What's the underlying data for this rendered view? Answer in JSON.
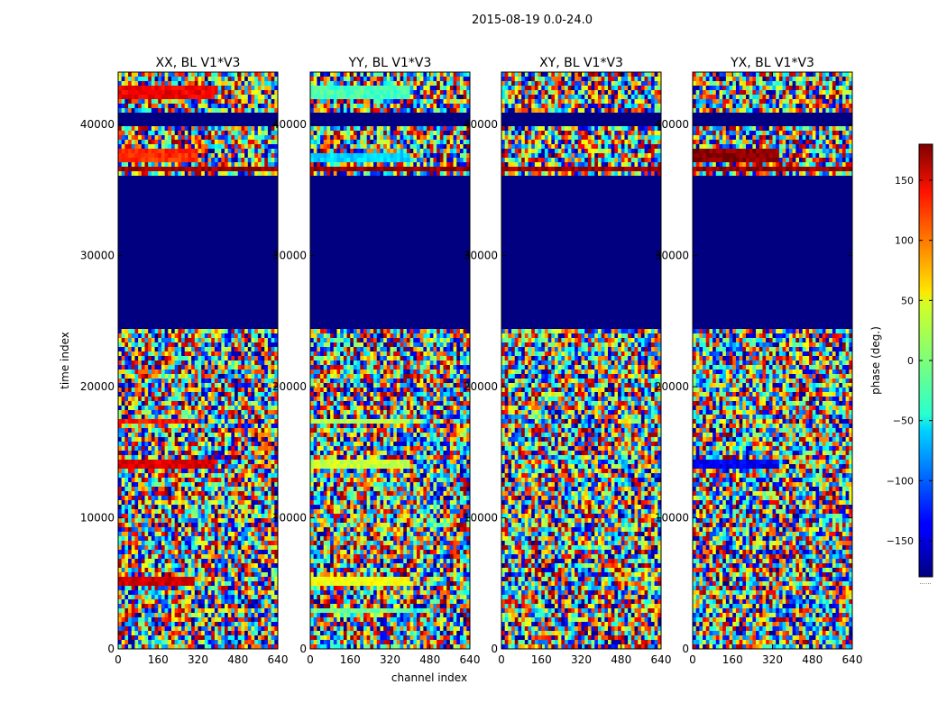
{
  "figure": {
    "suptitle": "2015-08-19 0.0-24.0",
    "xlabel": "channel index",
    "ylabel": "time index"
  },
  "chart_data": {
    "type": "heatmap",
    "colormap": "jet",
    "xlim": [
      0,
      640
    ],
    "ylim": [
      0,
      44000
    ],
    "x_ticks": [
      0,
      160,
      320,
      480,
      640
    ],
    "y_ticks": [
      0,
      10000,
      20000,
      30000,
      40000
    ],
    "x_tick_labels": [
      "0",
      "160",
      "320",
      "480",
      "640"
    ],
    "y_tick_labels": [
      "0",
      "10000",
      "20000",
      "30000",
      "40000"
    ],
    "panels": [
      {
        "title": "XX, BL V1*V3",
        "pol": "XX",
        "flagged_ranges": [
          [
            24500,
            36200
          ],
          [
            40000,
            41000
          ]
        ],
        "coherent_bands": [
          {
            "t0": 42000,
            "t1": 42800,
            "phase": 140,
            "ch_end": 380
          },
          {
            "t0": 37200,
            "t1": 38200,
            "phase": 120,
            "ch_end": 320
          },
          {
            "t0": 36300,
            "t1": 36900,
            "phase": 170,
            "ch_end": 640
          },
          {
            "t0": 17200,
            "t1": 17700,
            "phase": 130,
            "ch_end": 300
          },
          {
            "t0": 13700,
            "t1": 14400,
            "phase": 145,
            "ch_end": 380
          },
          {
            "t0": 4800,
            "t1": 5500,
            "phase": 150,
            "ch_end": 300
          }
        ]
      },
      {
        "title": "YY, BL V1*V3",
        "pol": "YY",
        "flagged_ranges": [
          [
            24500,
            36200
          ],
          [
            40000,
            41000
          ]
        ],
        "coherent_bands": [
          {
            "t0": 42000,
            "t1": 42800,
            "phase": -20,
            "ch_end": 400
          },
          {
            "t0": 37200,
            "t1": 37900,
            "phase": -60,
            "ch_end": 400
          },
          {
            "t0": 36300,
            "t1": 36900,
            "phase": 170,
            "ch_end": 640
          },
          {
            "t0": 17200,
            "t1": 17700,
            "phase": 20,
            "ch_end": 400
          },
          {
            "t0": 13700,
            "t1": 14300,
            "phase": 25,
            "ch_end": 400
          },
          {
            "t0": 4800,
            "t1": 5500,
            "phase": 40,
            "ch_end": 400
          },
          {
            "t0": 2700,
            "t1": 3200,
            "phase": -5,
            "ch_end": 400
          }
        ]
      },
      {
        "title": "XY, BL V1*V3",
        "pol": "XY",
        "flagged_ranges": [
          [
            24500,
            36200
          ],
          [
            40000,
            41000
          ]
        ],
        "coherent_bands": [
          {
            "t0": 36300,
            "t1": 36900,
            "phase": 170,
            "ch_end": 640
          }
        ]
      },
      {
        "title": "YX, BL V1*V3",
        "pol": "YX",
        "flagged_ranges": [
          [
            24500,
            36200
          ],
          [
            40000,
            41000
          ]
        ],
        "coherent_bands": [
          {
            "t0": 37200,
            "t1": 38200,
            "phase": 175,
            "ch_end": 350
          },
          {
            "t0": 36300,
            "t1": 36900,
            "phase": 170,
            "ch_end": 640
          },
          {
            "t0": 13700,
            "t1": 14300,
            "phase": -140,
            "ch_end": 350
          }
        ]
      }
    ],
    "colorbar": {
      "label": "phase (deg.)",
      "range": [
        -180,
        180
      ],
      "ticks": [
        150,
        100,
        50,
        0,
        -50,
        -100,
        -150
      ],
      "tick_labels": [
        "150",
        "100",
        "50",
        "0",
        "−50",
        "−100",
        "−150"
      ],
      "under_label": "......"
    }
  }
}
